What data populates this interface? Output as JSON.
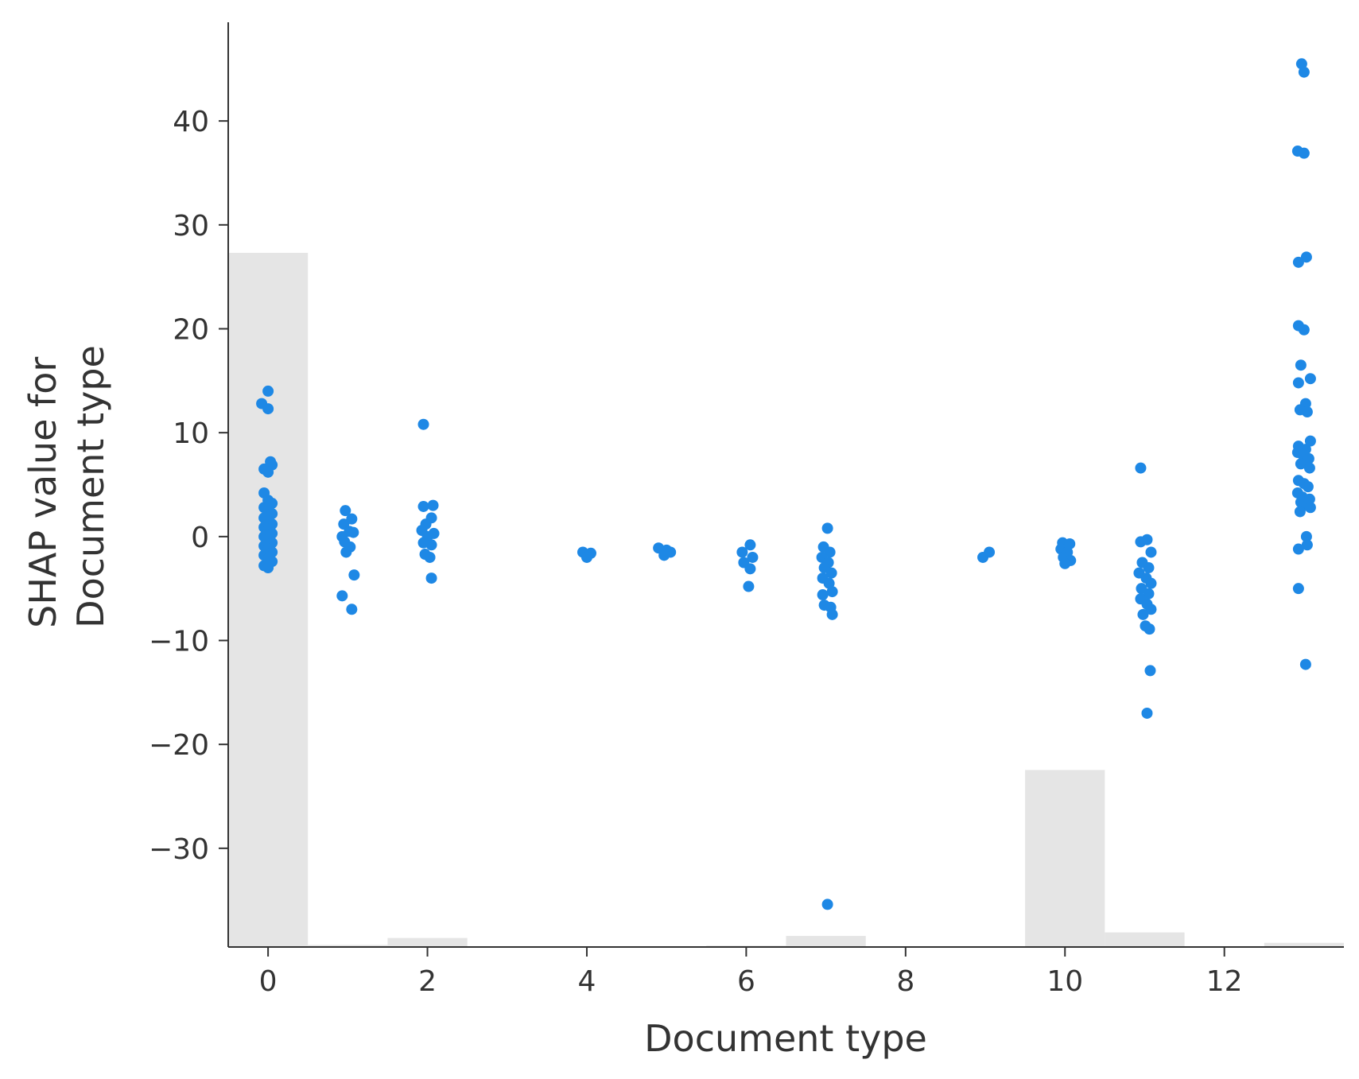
{
  "chart_data": {
    "type": "scatter",
    "title": "",
    "xlabel": "Document type",
    "ylabel_lines": [
      "SHAP value for",
      "Document type"
    ],
    "xlim": [
      -0.5,
      13.5
    ],
    "ylim": [
      -39.5,
      49.5
    ],
    "x_ticks": [
      0,
      2,
      4,
      6,
      8,
      10,
      12
    ],
    "y_ticks": [
      -30,
      -20,
      -10,
      0,
      10,
      20,
      30,
      40
    ],
    "grid": false,
    "colors": {
      "points": "#1e88e5",
      "histogram": "#e5e5e5",
      "axis": "#333333"
    },
    "histogram": {
      "note": "background distribution of feature values (relative heights)",
      "bins": [
        {
          "x": 0,
          "value": 1.0
        },
        {
          "x": 1,
          "value": 0.003
        },
        {
          "x": 2,
          "value": 0.013
        },
        {
          "x": 6,
          "value": 0.002
        },
        {
          "x": 7,
          "value": 0.016
        },
        {
          "x": 10,
          "value": 0.255
        },
        {
          "x": 11,
          "value": 0.021
        },
        {
          "x": 13,
          "value": 0.006
        }
      ]
    },
    "series": [
      {
        "points": [
          [
            0,
            14
          ],
          [
            -0.08,
            12.8
          ],
          [
            0,
            12.3
          ],
          [
            0.03,
            7.2
          ],
          [
            0.05,
            6.9
          ],
          [
            -0.05,
            6.5
          ],
          [
            0,
            6.2
          ],
          [
            -0.05,
            4.2
          ],
          [
            0,
            3.5
          ],
          [
            0.05,
            3.2
          ],
          [
            -0.05,
            2.8
          ],
          [
            0,
            2.5
          ],
          [
            0.05,
            2.2
          ],
          [
            -0.05,
            1.8
          ],
          [
            0,
            1.5
          ],
          [
            0.05,
            1.2
          ],
          [
            -0.05,
            0.9
          ],
          [
            0,
            0.6
          ],
          [
            0.05,
            0.3
          ],
          [
            -0.05,
            0
          ],
          [
            0,
            -0.3
          ],
          [
            0.05,
            -0.6
          ],
          [
            -0.05,
            -0.9
          ],
          [
            0,
            -1.2
          ],
          [
            0.05,
            -1.5
          ],
          [
            -0.05,
            -1.8
          ],
          [
            0,
            -2.1
          ],
          [
            0.05,
            -2.4
          ],
          [
            -0.05,
            -2.8
          ],
          [
            0,
            -3
          ],
          [
            0.97,
            2.5
          ],
          [
            1.05,
            1.7
          ],
          [
            0.95,
            1.2
          ],
          [
            1.02,
            0.5
          ],
          [
            0.93,
            0
          ],
          [
            1.07,
            0.4
          ],
          [
            0.96,
            -0.5
          ],
          [
            1.03,
            -1
          ],
          [
            0.98,
            -1.5
          ],
          [
            1.08,
            -3.7
          ],
          [
            0.93,
            -5.7
          ],
          [
            1.05,
            -7
          ],
          [
            1.95,
            10.8
          ],
          [
            1.95,
            2.9
          ],
          [
            2.07,
            3
          ],
          [
            2.05,
            1.8
          ],
          [
            1.98,
            1.2
          ],
          [
            1.93,
            0.6
          ],
          [
            2.08,
            0.3
          ],
          [
            2,
            0
          ],
          [
            1.95,
            -0.6
          ],
          [
            2.05,
            -0.8
          ],
          [
            1.97,
            -1.7
          ],
          [
            2.03,
            -2
          ],
          [
            2.05,
            -4
          ],
          [
            3.95,
            -1.5
          ],
          [
            4.05,
            -1.6
          ],
          [
            4,
            -2
          ],
          [
            4.9,
            -1.1
          ],
          [
            5,
            -1.3
          ],
          [
            5.05,
            -1.5
          ],
          [
            4.97,
            -1.8
          ],
          [
            6.05,
            -0.8
          ],
          [
            5.95,
            -1.5
          ],
          [
            6.08,
            -2
          ],
          [
            5.97,
            -2.5
          ],
          [
            6.05,
            -3.1
          ],
          [
            6.03,
            -4.8
          ],
          [
            7.02,
            0.8
          ],
          [
            6.97,
            -1
          ],
          [
            7.05,
            -1.5
          ],
          [
            6.95,
            -2
          ],
          [
            7.03,
            -2.5
          ],
          [
            6.98,
            -3
          ],
          [
            7.07,
            -3.5
          ],
          [
            6.96,
            -4
          ],
          [
            7.04,
            -4.5
          ],
          [
            7.08,
            -5.3
          ],
          [
            6.96,
            -5.6
          ],
          [
            6.98,
            -6.6
          ],
          [
            7.06,
            -6.8
          ],
          [
            7.08,
            -7.5
          ],
          [
            7.02,
            -35.4
          ],
          [
            8.97,
            -2
          ],
          [
            9.05,
            -1.5
          ],
          [
            9.97,
            -0.6
          ],
          [
            10.06,
            -0.7
          ],
          [
            9.95,
            -1.2
          ],
          [
            10.03,
            -1.5
          ],
          [
            9.98,
            -2
          ],
          [
            10.07,
            -2.3
          ],
          [
            10,
            -2.6
          ],
          [
            10.95,
            6.6
          ],
          [
            10.95,
            -0.5
          ],
          [
            11.03,
            -0.3
          ],
          [
            11.08,
            -1.5
          ],
          [
            10.97,
            -2.5
          ],
          [
            11.05,
            -3
          ],
          [
            10.93,
            -3.5
          ],
          [
            11.02,
            -4
          ],
          [
            11.08,
            -4.5
          ],
          [
            10.96,
            -5
          ],
          [
            11.05,
            -5.5
          ],
          [
            10.95,
            -6
          ],
          [
            11.03,
            -6.5
          ],
          [
            11.08,
            -7
          ],
          [
            10.98,
            -7.5
          ],
          [
            11.01,
            -8.6
          ],
          [
            11.06,
            -8.9
          ],
          [
            11.07,
            -12.9
          ],
          [
            11.03,
            -17
          ],
          [
            12.97,
            45.5
          ],
          [
            13,
            44.7
          ],
          [
            12.92,
            37.1
          ],
          [
            13,
            36.9
          ],
          [
            12.93,
            26.4
          ],
          [
            13.03,
            26.9
          ],
          [
            12.93,
            20.3
          ],
          [
            13,
            19.9
          ],
          [
            12.96,
            16.5
          ],
          [
            13.08,
            15.2
          ],
          [
            12.93,
            14.8
          ],
          [
            13.02,
            12.8
          ],
          [
            13.04,
            12
          ],
          [
            12.95,
            12.2
          ],
          [
            13.08,
            9.2
          ],
          [
            12.93,
            8.7
          ],
          [
            13.02,
            8.4
          ],
          [
            12.92,
            8.1
          ],
          [
            12.98,
            7.9
          ],
          [
            13.06,
            7.5
          ],
          [
            12.96,
            7
          ],
          [
            13.07,
            6.6
          ],
          [
            12.93,
            5.4
          ],
          [
            13,
            5.1
          ],
          [
            13.05,
            4.8
          ],
          [
            12.92,
            4.2
          ],
          [
            12.98,
            3.8
          ],
          [
            13.07,
            3.6
          ],
          [
            12.96,
            3.3
          ],
          [
            13.04,
            3
          ],
          [
            13.08,
            2.8
          ],
          [
            12.95,
            2.4
          ],
          [
            13.03,
            0
          ],
          [
            13.04,
            -0.8
          ],
          [
            12.93,
            -1.2
          ],
          [
            12.93,
            -5
          ],
          [
            13.02,
            -12.3
          ]
        ]
      }
    ]
  }
}
